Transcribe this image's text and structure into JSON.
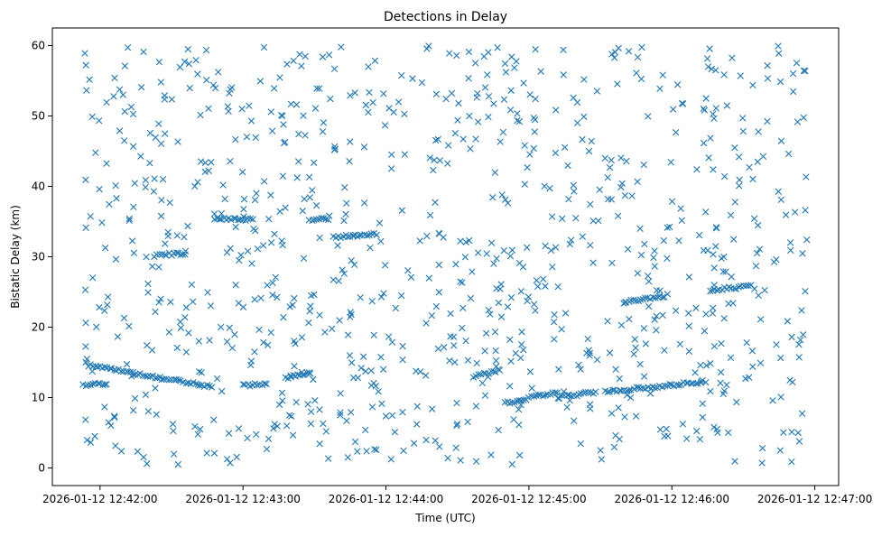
{
  "chart_data": {
    "type": "scatter",
    "title": "Detections in Delay",
    "xlabel": "Time (UTC)",
    "ylabel": "Bistatic Delay (km)",
    "marker": "x",
    "marker_color": "#1f77b4",
    "grid": false,
    "x_unit": "time (UTC)",
    "xlim": [
      "2026-01-12 12:41:40",
      "2026-01-12 12:47:10"
    ],
    "ylim": [
      -2.5,
      62.5
    ],
    "x_ticks": [
      "2026-01-12 12:42:00",
      "2026-01-12 12:43:00",
      "2026-01-12 12:44:00",
      "2026-01-12 12:45:00",
      "2026-01-12 12:46:00",
      "2026-01-12 12:47:00"
    ],
    "y_ticks": [
      "0",
      "10",
      "20",
      "30",
      "40",
      "50",
      "60"
    ],
    "time_range": [
      "2026-01-12 12:41:53",
      "2026-01-12 12:46:57"
    ],
    "track_segments": [
      {
        "start": "2026-01-12 12:41:53",
        "end": "2026-01-12 12:42:03",
        "delay_start": 11.8,
        "delay_end": 11.9
      },
      {
        "start": "2026-01-12 12:41:55",
        "end": "2026-01-12 12:42:47",
        "delay_start": 14.6,
        "delay_end": 11.5
      },
      {
        "start": "2026-01-12 12:42:23",
        "end": "2026-01-12 12:42:36",
        "delay_start": 30.2,
        "delay_end": 30.5
      },
      {
        "start": "2026-01-12 12:42:48",
        "end": "2026-01-12 12:43:04",
        "delay_start": 35.3,
        "delay_end": 35.3
      },
      {
        "start": "2026-01-12 12:43:00",
        "end": "2026-01-12 12:43:10",
        "delay_start": 11.7,
        "delay_end": 11.9
      },
      {
        "start": "2026-01-12 12:43:18",
        "end": "2026-01-12 12:43:28",
        "delay_start": 12.8,
        "delay_end": 13.5
      },
      {
        "start": "2026-01-12 12:43:28",
        "end": "2026-01-12 12:43:36",
        "delay_start": 35.3,
        "delay_end": 35.3
      },
      {
        "start": "2026-01-12 12:43:38",
        "end": "2026-01-12 12:43:56",
        "delay_start": 32.8,
        "delay_end": 33.2
      },
      {
        "start": "2026-01-12 12:44:37",
        "end": "2026-01-12 12:44:48",
        "delay_start": 13.0,
        "delay_end": 14.0
      },
      {
        "start": "2026-01-12 12:44:50",
        "end": "2026-01-12 12:45:12",
        "delay_start": 9.2,
        "delay_end": 10.8
      },
      {
        "start": "2026-01-12 12:45:12",
        "end": "2026-01-12 12:45:28",
        "delay_start": 10.0,
        "delay_end": 10.8
      },
      {
        "start": "2026-01-12 12:45:32",
        "end": "2026-01-12 12:46:14",
        "delay_start": 10.8,
        "delay_end": 12.3
      },
      {
        "start": "2026-01-12 12:45:40",
        "end": "2026-01-12 12:45:58",
        "delay_start": 23.5,
        "delay_end": 24.5
      },
      {
        "start": "2026-01-12 12:46:16",
        "end": "2026-01-12 12:46:33",
        "delay_start": 25.3,
        "delay_end": 25.8
      }
    ],
    "clutter_points": 900,
    "clutter_delay_range": [
      0.5,
      60
    ]
  }
}
